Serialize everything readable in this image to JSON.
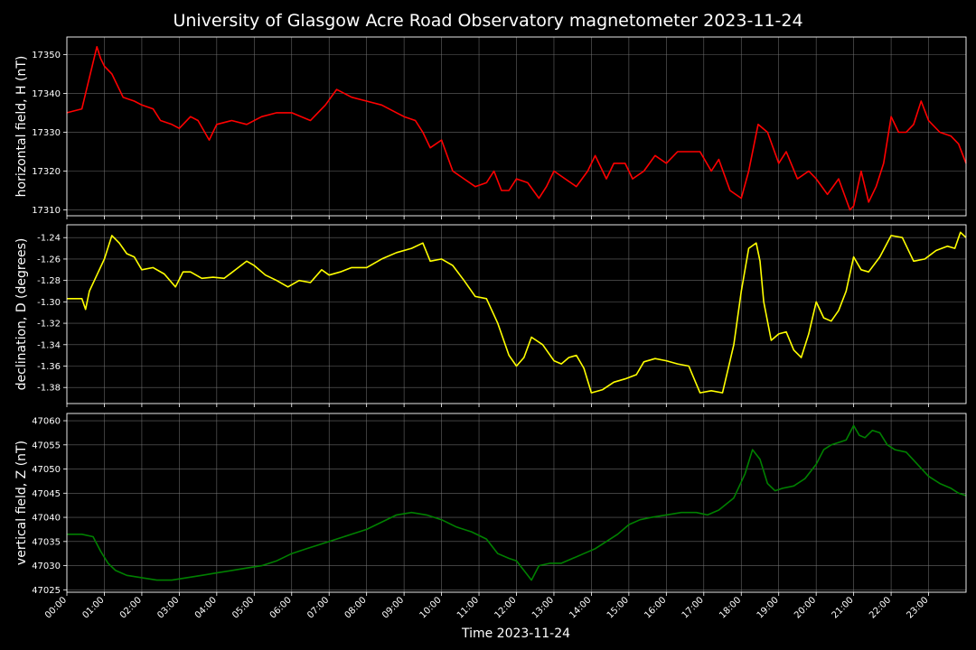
{
  "title": "University of Glasgow Acre Road Observatory magnetometer 2023-11-24",
  "xlabel": "Time 2023-11-24",
  "x_ticks": [
    "00:00",
    "01:00",
    "02:00",
    "03:00",
    "04:00",
    "05:00",
    "06:00",
    "07:00",
    "08:00",
    "09:00",
    "10:00",
    "11:00",
    "12:00",
    "13:00",
    "14:00",
    "15:00",
    "16:00",
    "17:00",
    "18:00",
    "19:00",
    "20:00",
    "21:00",
    "22:00",
    "23:00"
  ],
  "colors": {
    "background": "#000000",
    "H": "#ff0000",
    "D": "#ffff00",
    "Z": "#008000",
    "grid": "#808080",
    "axes": "#ffffff"
  },
  "chart_data": [
    {
      "type": "line",
      "ylabel": "horizontal field, H (nT)",
      "series_name": "H",
      "xlim": [
        0,
        24
      ],
      "ylim": [
        17308.5,
        17354.5
      ],
      "yticks": [
        17310,
        17320,
        17330,
        17340,
        17350
      ],
      "grid": true,
      "x": [
        0.0,
        0.4,
        0.55,
        0.8,
        0.9,
        1.0,
        1.2,
        1.5,
        1.8,
        2.0,
        2.3,
        2.5,
        2.8,
        3.0,
        3.3,
        3.5,
        3.8,
        4.0,
        4.4,
        4.8,
        5.2,
        5.6,
        6.0,
        6.5,
        6.9,
        7.2,
        7.6,
        8.0,
        8.4,
        8.8,
        9.0,
        9.3,
        9.5,
        9.7,
        10.0,
        10.3,
        10.6,
        10.9,
        11.2,
        11.4,
        11.6,
        11.8,
        12.0,
        12.3,
        12.6,
        12.8,
        13.0,
        13.3,
        13.6,
        13.9,
        14.1,
        14.4,
        14.6,
        14.9,
        15.1,
        15.4,
        15.7,
        16.0,
        16.3,
        16.6,
        16.9,
        17.2,
        17.4,
        17.7,
        18.0,
        18.2,
        18.45,
        18.7,
        19.0,
        19.2,
        19.5,
        19.8,
        20.0,
        20.3,
        20.6,
        20.9,
        21.0,
        21.2,
        21.4,
        21.6,
        21.8,
        22.0,
        22.2,
        22.4,
        22.6,
        22.8,
        23.0,
        23.3,
        23.6,
        23.8,
        24.0
      ],
      "y": [
        17335,
        17336,
        17342,
        17352,
        17349,
        17347,
        17345,
        17339,
        17338,
        17337,
        17336,
        17333,
        17332,
        17331,
        17334,
        17333,
        17328,
        17332,
        17333,
        17332,
        17334,
        17335,
        17335,
        17333,
        17337,
        17341,
        17339,
        17338,
        17337,
        17335,
        17334,
        17333,
        17330,
        17326,
        17328,
        17320,
        17318,
        17316,
        17317,
        17320,
        17315,
        17315,
        17318,
        17317,
        17313,
        17316,
        17320,
        17318,
        17316,
        17320,
        17324,
        17318,
        17322,
        17322,
        17318,
        17320,
        17324,
        17322,
        17325,
        17325,
        17325,
        17320,
        17323,
        17315,
        17313,
        17320,
        17332,
        17330,
        17322,
        17325,
        17318,
        17320,
        17318,
        17314,
        17318,
        17310,
        17311,
        17320,
        17312,
        17316,
        17322,
        17334,
        17330,
        17330,
        17332,
        17338,
        17333,
        17330,
        17329,
        17327,
        17322
      ]
    },
    {
      "type": "line",
      "ylabel": "declination, D (degrees)",
      "series_name": "D",
      "xlim": [
        0,
        24
      ],
      "ylim": [
        -1.395,
        -1.228
      ],
      "yticks": [
        -1.24,
        -1.26,
        -1.28,
        -1.3,
        -1.32,
        -1.34,
        -1.36,
        -1.38
      ],
      "grid": true,
      "x": [
        0.0,
        0.4,
        0.5,
        0.6,
        0.8,
        1.0,
        1.2,
        1.4,
        1.6,
        1.8,
        2.0,
        2.3,
        2.6,
        2.9,
        3.1,
        3.3,
        3.6,
        3.9,
        4.2,
        4.5,
        4.8,
        5.0,
        5.3,
        5.6,
        5.9,
        6.2,
        6.5,
        6.8,
        7.0,
        7.3,
        7.6,
        8.0,
        8.4,
        8.8,
        9.2,
        9.5,
        9.7,
        10.0,
        10.3,
        10.6,
        10.9,
        11.2,
        11.5,
        11.8,
        12.0,
        12.2,
        12.4,
        12.7,
        13.0,
        13.2,
        13.4,
        13.6,
        13.8,
        14.0,
        14.3,
        14.6,
        14.9,
        15.2,
        15.4,
        15.7,
        16.0,
        16.3,
        16.6,
        16.9,
        17.2,
        17.5,
        17.8,
        18.0,
        18.2,
        18.4,
        18.5,
        18.6,
        18.8,
        19.0,
        19.2,
        19.4,
        19.6,
        19.8,
        20.0,
        20.2,
        20.4,
        20.6,
        20.8,
        21.0,
        21.2,
        21.4,
        21.7,
        22.0,
        22.3,
        22.6,
        22.9,
        23.2,
        23.5,
        23.7,
        23.85,
        24.0
      ],
      "y": [
        -1.297,
        -1.297,
        -1.307,
        -1.29,
        -1.275,
        -1.26,
        -1.238,
        -1.245,
        -1.255,
        -1.258,
        -1.27,
        -1.268,
        -1.274,
        -1.286,
        -1.272,
        -1.272,
        -1.278,
        -1.277,
        -1.278,
        -1.27,
        -1.262,
        -1.266,
        -1.275,
        -1.28,
        -1.286,
        -1.28,
        -1.282,
        -1.27,
        -1.275,
        -1.272,
        -1.268,
        -1.268,
        -1.26,
        -1.254,
        -1.25,
        -1.245,
        -1.262,
        -1.26,
        -1.266,
        -1.28,
        -1.295,
        -1.297,
        -1.32,
        -1.35,
        -1.36,
        -1.352,
        -1.333,
        -1.34,
        -1.355,
        -1.358,
        -1.352,
        -1.35,
        -1.362,
        -1.385,
        -1.382,
        -1.375,
        -1.372,
        -1.368,
        -1.356,
        -1.353,
        -1.355,
        -1.358,
        -1.36,
        -1.385,
        -1.383,
        -1.385,
        -1.34,
        -1.29,
        -1.25,
        -1.245,
        -1.262,
        -1.3,
        -1.336,
        -1.33,
        -1.328,
        -1.345,
        -1.352,
        -1.33,
        -1.3,
        -1.315,
        -1.318,
        -1.308,
        -1.29,
        -1.258,
        -1.27,
        -1.272,
        -1.258,
        -1.238,
        -1.24,
        -1.262,
        -1.26,
        -1.252,
        -1.248,
        -1.25,
        -1.235,
        -1.24
      ]
    },
    {
      "type": "line",
      "ylabel": "vertical field, Z (nT)",
      "series_name": "Z",
      "xlim": [
        0,
        24
      ],
      "ylim": [
        47024.5,
        47061.5
      ],
      "yticks": [
        47025,
        47030,
        47035,
        47040,
        47045,
        47050,
        47055,
        47060
      ],
      "grid": true,
      "x": [
        0.0,
        0.4,
        0.7,
        0.9,
        1.1,
        1.3,
        1.6,
        2.0,
        2.4,
        2.8,
        3.2,
        3.6,
        4.0,
        4.4,
        4.8,
        5.2,
        5.6,
        6.0,
        6.4,
        6.8,
        7.2,
        7.6,
        8.0,
        8.4,
        8.8,
        9.2,
        9.6,
        10.0,
        10.4,
        10.8,
        11.2,
        11.5,
        11.8,
        12.0,
        12.2,
        12.4,
        12.6,
        12.9,
        13.2,
        13.5,
        13.8,
        14.1,
        14.4,
        14.7,
        15.0,
        15.3,
        15.6,
        16.0,
        16.4,
        16.8,
        17.1,
        17.4,
        17.8,
        18.1,
        18.3,
        18.5,
        18.7,
        18.9,
        19.1,
        19.4,
        19.7,
        20.0,
        20.2,
        20.4,
        20.6,
        20.8,
        21.0,
        21.15,
        21.3,
        21.5,
        21.7,
        21.9,
        22.1,
        22.4,
        22.7,
        23.0,
        23.3,
        23.6,
        23.8,
        24.0
      ],
      "y": [
        47036.5,
        47036.5,
        47036,
        47033,
        47030.5,
        47029,
        47028,
        47027.5,
        47027,
        47027,
        47027.5,
        47028,
        47028.5,
        47029,
        47029.5,
        47030,
        47031,
        47032.5,
        47033.5,
        47034.5,
        47035.5,
        47036.5,
        47037.5,
        47039,
        47040.5,
        47041,
        47040.5,
        47039.5,
        47038,
        47037,
        47035.5,
        47032.5,
        47031.5,
        47031,
        47029,
        47027,
        47030,
        47030.5,
        47030.5,
        47031.5,
        47032.5,
        47033.5,
        47035,
        47036.5,
        47038.5,
        47039.5,
        47040,
        47040.5,
        47041,
        47041,
        47040.5,
        47041.5,
        47044,
        47049,
        47054,
        47052,
        47047,
        47045.5,
        47046,
        47046.5,
        47048,
        47051,
        47054,
        47055,
        47055.5,
        47056,
        47059,
        47057,
        47056.5,
        47058,
        47057.5,
        47055,
        47054,
        47053.5,
        47051,
        47048.5,
        47047,
        47046,
        47045,
        47044.5
      ]
    }
  ]
}
